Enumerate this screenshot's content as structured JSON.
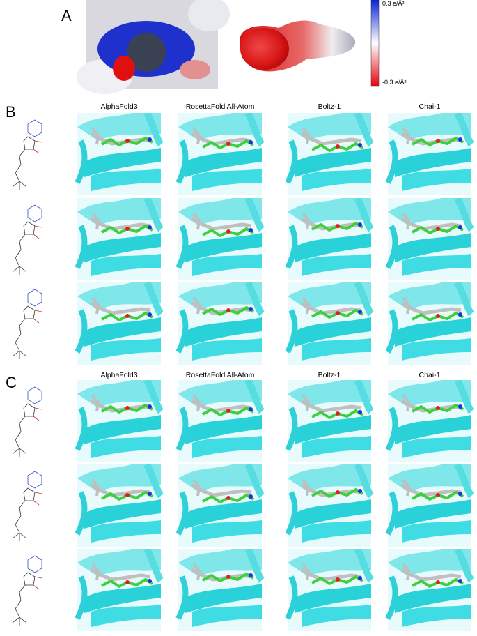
{
  "panel_a": {
    "label": "A",
    "colorbar": {
      "max_label": "0.3 e/Å²",
      "min_label": "-0.3 e/Å²"
    }
  },
  "panel_b": {
    "label": "B",
    "columns": [
      "AlphaFold3",
      "RosettaFold All-Atom",
      "Boltz-1",
      "Chai-1"
    ]
  },
  "panel_c": {
    "label": "C",
    "columns": [
      "AlphaFold3",
      "RosettaFold All-Atom",
      "Boltz-1",
      "Chai-1"
    ]
  }
}
